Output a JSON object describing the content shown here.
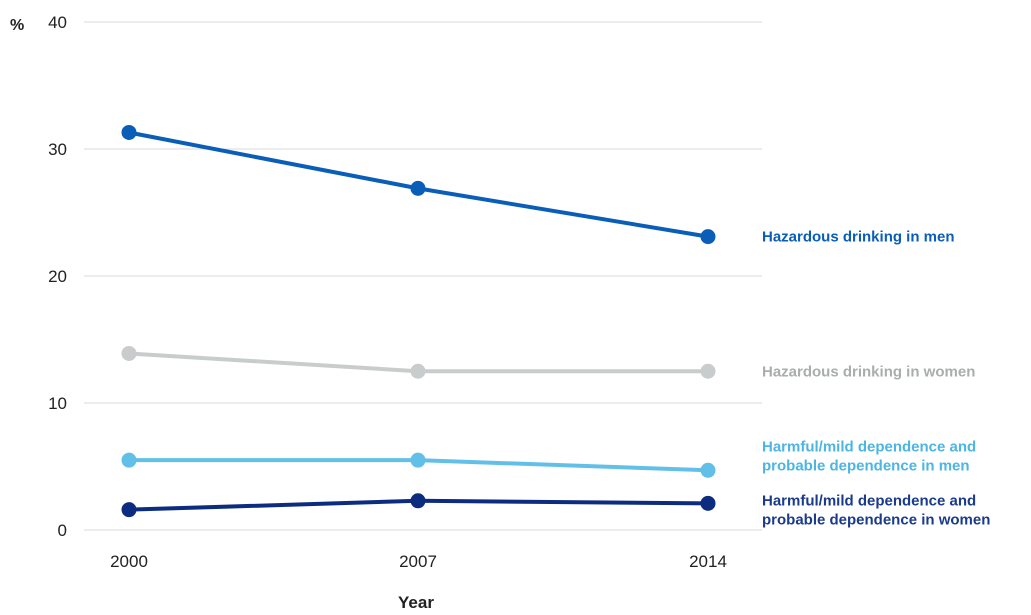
{
  "chart_data": {
    "type": "line",
    "title": "",
    "ylabel": "%",
    "xlabel": "Year",
    "ylim": [
      0,
      40
    ],
    "yticks": [
      "0",
      "10",
      "20",
      "30",
      "40"
    ],
    "categories": [
      "2000",
      "2007",
      "2014"
    ],
    "grid": true,
    "legend": "direct-labels-right",
    "series": [
      {
        "name": "Hazardous drinking in men",
        "label_lines": [
          "Hazardous drinking in men"
        ],
        "values": [
          31.3,
          26.9,
          23.1
        ],
        "color": "#0a5eb8"
      },
      {
        "name": "Hazardous drinking in women",
        "label_lines": [
          "Hazardous drinking in women"
        ],
        "values": [
          13.9,
          12.5,
          12.5
        ],
        "color": "#c9cccc",
        "label_color": "#a9adad"
      },
      {
        "name": "Harmful/mild dependence and probable dependence in men",
        "label_lines": [
          "Harmful/mild dependence and",
          "probable dependence in men"
        ],
        "values": [
          5.5,
          5.5,
          4.7
        ],
        "color": "#62c0e8",
        "label_color": "#4cb5e3"
      },
      {
        "name": "Harmful/mild dependence and probable dependence in women",
        "label_lines": [
          "Harmful/mild dependence and",
          "probable dependence in women"
        ],
        "values": [
          1.6,
          2.3,
          2.1
        ],
        "color": "#0c2c80",
        "label_color": "#1a3a8c"
      }
    ]
  }
}
